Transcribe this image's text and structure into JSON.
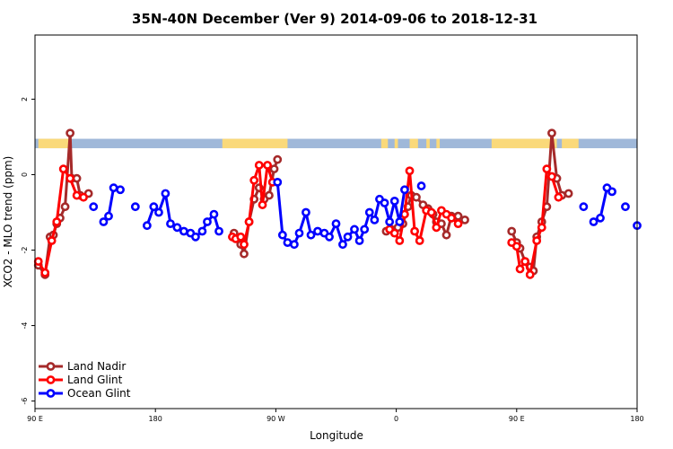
{
  "chart_data": {
    "type": "line",
    "title": "35N-40N December (Ver 9)   2014-09-06 to 2018-12-31",
    "xlabel": "Longitude",
    "ylabel": "XCO2 - MLO trend (ppm)",
    "xlim": [
      90,
      450
    ],
    "ylim": [
      -6.2,
      3.7
    ],
    "x_ticks": [
      {
        "value": 90,
        "label": "90 E"
      },
      {
        "value": 162,
        "label": "180"
      },
      {
        "value": 234,
        "label": "90 W"
      },
      {
        "value": 306,
        "label": "0"
      },
      {
        "value": 378,
        "label": "90 E"
      },
      {
        "value": 450,
        "label": "180"
      }
    ],
    "y_ticks": [
      {
        "value": 2,
        "label": "2"
      },
      {
        "value": 0,
        "label": "0"
      },
      {
        "value": -2,
        "label": "-2"
      },
      {
        "value": -4,
        "label": "-4"
      },
      {
        "value": -6,
        "label": "-6"
      }
    ],
    "land_ocean_band": {
      "y_bottom": 0.7,
      "y_top": 0.95,
      "ocean_color": "#9fb8d9",
      "land_color": "#fad97a",
      "land_segments": [
        [
          92,
          112
        ],
        [
          202,
          241
        ],
        [
          297,
          301
        ],
        [
          305,
          307
        ],
        [
          314,
          319
        ],
        [
          324,
          326
        ],
        [
          330,
          332
        ],
        [
          363,
          398
        ],
        [
          400,
          402
        ],
        [
          405,
          415
        ]
      ]
    },
    "series": [
      {
        "name": "Land Nadir",
        "color": "#a52a2a",
        "segments": [
          [
            [
              92,
              -2.4
            ],
            [
              96,
              -2.65
            ],
            [
              99,
              -1.65
            ],
            [
              101,
              -1.6
            ],
            [
              103,
              -1.3
            ],
            [
              105,
              -1.15
            ],
            [
              108,
              -0.85
            ],
            [
              111,
              1.1
            ],
            [
              112,
              -0.1
            ],
            [
              115,
              -0.1
            ],
            [
              117,
              -0.55
            ],
            [
              122,
              -0.5
            ]
          ],
          [
            [
              209,
              -1.55
            ],
            [
              213,
              -1.85
            ],
            [
              215,
              -2.1
            ],
            [
              218,
              -1.25
            ],
            [
              221,
              -0.65
            ],
            [
              224,
              -0.35
            ],
            [
              227,
              -0.65
            ],
            [
              230,
              -0.55
            ],
            [
              233,
              0.15
            ],
            [
              235,
              0.4
            ]
          ],
          [
            [
              300,
              -1.5
            ],
            [
              303,
              -1.45
            ],
            [
              307,
              -1.4
            ],
            [
              310,
              -1.3
            ],
            [
              313,
              -0.85
            ],
            [
              315,
              -0.55
            ],
            [
              318,
              -0.6
            ],
            [
              322,
              -0.8
            ],
            [
              325,
              -0.9
            ],
            [
              328,
              -1.05
            ],
            [
              330,
              -1.25
            ],
            [
              333,
              -1.3
            ],
            [
              336,
              -1.6
            ],
            [
              339,
              -1.1
            ],
            [
              343,
              -1.1
            ],
            [
              347,
              -1.2
            ]
          ],
          [
            [
              375,
              -1.5
            ],
            [
              378,
              -1.8
            ],
            [
              380,
              -1.95
            ],
            [
              383,
              -2.3
            ],
            [
              386,
              -2.45
            ],
            [
              388,
              -2.55
            ],
            [
              390,
              -1.65
            ],
            [
              393,
              -1.25
            ],
            [
              396,
              -0.85
            ],
            [
              399,
              1.1
            ],
            [
              402,
              -0.1
            ],
            [
              405,
              -0.55
            ],
            [
              409,
              -0.5
            ]
          ]
        ]
      },
      {
        "name": "Land Glint",
        "color": "#ff0000",
        "segments": [
          [
            [
              92,
              -2.3
            ],
            [
              96,
              -2.6
            ],
            [
              100,
              -1.75
            ],
            [
              103,
              -1.25
            ],
            [
              107,
              0.15
            ],
            [
              111,
              -0.1
            ],
            [
              115,
              -0.55
            ],
            [
              119,
              -0.6
            ]
          ],
          [
            [
              208,
              -1.65
            ],
            [
              210,
              -1.7
            ],
            [
              213,
              -1.65
            ],
            [
              215,
              -1.85
            ],
            [
              218,
              -1.25
            ],
            [
              221,
              -0.15
            ],
            [
              224,
              0.25
            ],
            [
              226,
              -0.8
            ],
            [
              229,
              0.25
            ],
            [
              232,
              -0.2
            ]
          ],
          [
            [
              302,
              -1.45
            ],
            [
              305,
              -1.55
            ],
            [
              308,
              -1.75
            ],
            [
              311,
              -1.05
            ],
            [
              314,
              0.1
            ],
            [
              317,
              -1.5
            ],
            [
              320,
              -1.75
            ],
            [
              324,
              -0.95
            ],
            [
              327,
              -1.0
            ],
            [
              330,
              -1.4
            ],
            [
              333,
              -0.95
            ],
            [
              336,
              -1.05
            ],
            [
              339,
              -1.15
            ],
            [
              343,
              -1.3
            ]
          ],
          [
            [
              375,
              -1.8
            ],
            [
              378,
              -1.9
            ],
            [
              380,
              -2.5
            ],
            [
              383,
              -2.3
            ],
            [
              386,
              -2.65
            ],
            [
              390,
              -1.75
            ],
            [
              393,
              -1.4
            ],
            [
              396,
              0.15
            ],
            [
              399,
              -0.05
            ],
            [
              403,
              -0.6
            ]
          ]
        ]
      },
      {
        "name": "Ocean Glint",
        "color": "#0000ff",
        "segments": [
          [
            [
              125,
              -0.85
            ]
          ],
          [
            [
              131,
              -1.25
            ],
            [
              134,
              -1.1
            ],
            [
              137,
              -0.35
            ],
            [
              141,
              -0.4
            ]
          ],
          [
            [
              150,
              -0.85
            ]
          ],
          [
            [
              157,
              -1.35
            ],
            [
              161,
              -0.85
            ],
            [
              164,
              -1.0
            ],
            [
              168,
              -0.5
            ],
            [
              171,
              -1.3
            ],
            [
              175,
              -1.4
            ],
            [
              179,
              -1.5
            ],
            [
              183,
              -1.55
            ],
            [
              186,
              -1.65
            ],
            [
              190,
              -1.5
            ],
            [
              193,
              -1.25
            ],
            [
              197,
              -1.05
            ],
            [
              200,
              -1.5
            ]
          ],
          [
            [
              235,
              -0.2
            ],
            [
              238,
              -1.6
            ],
            [
              241,
              -1.8
            ],
            [
              245,
              -1.85
            ],
            [
              248,
              -1.55
            ],
            [
              252,
              -1.0
            ],
            [
              255,
              -1.6
            ],
            [
              259,
              -1.5
            ],
            [
              263,
              -1.55
            ],
            [
              266,
              -1.65
            ],
            [
              270,
              -1.3
            ],
            [
              274,
              -1.85
            ],
            [
              277,
              -1.65
            ],
            [
              281,
              -1.45
            ],
            [
              284,
              -1.75
            ],
            [
              287,
              -1.45
            ],
            [
              290,
              -1.0
            ],
            [
              293,
              -1.2
            ],
            [
              296,
              -0.65
            ],
            [
              299,
              -0.75
            ],
            [
              302,
              -1.25
            ],
            [
              305,
              -0.7
            ],
            [
              308,
              -1.25
            ],
            [
              311,
              -0.4
            ]
          ],
          [
            [
              321,
              -0.3
            ]
          ],
          [
            [
              418,
              -0.85
            ]
          ],
          [
            [
              424,
              -1.25
            ],
            [
              428,
              -1.15
            ],
            [
              432,
              -0.35
            ],
            [
              435,
              -0.45
            ]
          ],
          [
            [
              443,
              -0.85
            ]
          ],
          [
            [
              450,
              -1.35
            ]
          ]
        ]
      }
    ],
    "legend": {
      "position": "bottom-left",
      "entries": [
        "Land Nadir",
        "Land Glint",
        "Ocean Glint"
      ]
    }
  }
}
